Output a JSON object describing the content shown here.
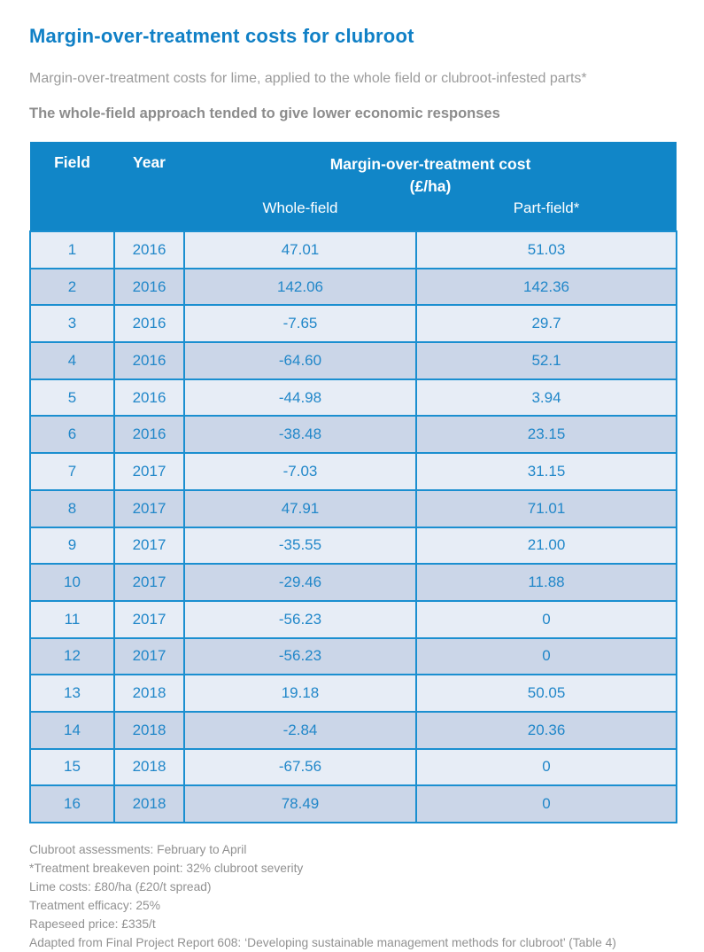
{
  "page": {
    "title": "Margin-over-treatment costs for clubroot",
    "subtitle": "Margin-over-treatment costs for lime, applied to the whole field or clubroot-infested parts*",
    "highlight": "The whole-field approach tended to give lower economic responses"
  },
  "table": {
    "col_field": "Field",
    "col_year": "Year",
    "group_line1": "Margin-over-treatment cost",
    "group_line2": "(£/ha)",
    "col_whole": "Whole-field",
    "col_part": "Part-field*",
    "rows": [
      {
        "field": "1",
        "year": "2016",
        "whole": "47.01",
        "part": "51.03"
      },
      {
        "field": "2",
        "year": "2016",
        "whole": "142.06",
        "part": "142.36"
      },
      {
        "field": "3",
        "year": "2016",
        "whole": "-7.65",
        "part": "29.7"
      },
      {
        "field": "4",
        "year": "2016",
        "whole": "-64.60",
        "part": "52.1"
      },
      {
        "field": "5",
        "year": "2016",
        "whole": "-44.98",
        "part": "3.94"
      },
      {
        "field": "6",
        "year": "2016",
        "whole": "-38.48",
        "part": "23.15"
      },
      {
        "field": "7",
        "year": "2017",
        "whole": "-7.03",
        "part": "31.15"
      },
      {
        "field": "8",
        "year": "2017",
        "whole": "47.91",
        "part": "71.01"
      },
      {
        "field": "9",
        "year": "2017",
        "whole": "-35.55",
        "part": "21.00"
      },
      {
        "field": "10",
        "year": "2017",
        "whole": "-29.46",
        "part": "11.88"
      },
      {
        "field": "11",
        "year": "2017",
        "whole": "-56.23",
        "part": "0"
      },
      {
        "field": "12",
        "year": "2017",
        "whole": "-56.23",
        "part": "0"
      },
      {
        "field": "13",
        "year": "2018",
        "whole": "19.18",
        "part": "50.05"
      },
      {
        "field": "14",
        "year": "2018",
        "whole": "-2.84",
        "part": "20.36"
      },
      {
        "field": "15",
        "year": "2018",
        "whole": "-67.56",
        "part": "0"
      },
      {
        "field": "16",
        "year": "2018",
        "whole": "78.49",
        "part": "0"
      }
    ]
  },
  "footnotes": [
    "Clubroot assessments: February to April",
    "*Treatment breakeven point: 32% clubroot severity",
    "Lime costs: £80/ha (£20/t spread)",
    "Treatment efficacy: 25%",
    "Rapeseed price: £335/t",
    "Adapted from Final Project Report 608: ‘Developing sustainable management methods for clubroot’ (Table 4)"
  ],
  "colors": {
    "title_blue": "#1080c6",
    "header_blue": "#1186c8",
    "border_blue": "#1b8fd0",
    "cell_text_blue": "#2187c9",
    "row_light": "#e7edf6",
    "row_dark": "#cbd6e8",
    "subtitle_gray": "#9b9b9b",
    "highlight_gray": "#8c8c8c",
    "footnote_gray": "#919191"
  },
  "chart_data": {
    "type": "table",
    "title": "Margin-over-treatment cost (£/ha)",
    "columns": [
      "Field",
      "Year",
      "Whole-field",
      "Part-field*"
    ],
    "rows": [
      [
        1,
        2016,
        47.01,
        51.03
      ],
      [
        2,
        2016,
        142.06,
        142.36
      ],
      [
        3,
        2016,
        -7.65,
        29.7
      ],
      [
        4,
        2016,
        -64.6,
        52.1
      ],
      [
        5,
        2016,
        -44.98,
        3.94
      ],
      [
        6,
        2016,
        -38.48,
        23.15
      ],
      [
        7,
        2017,
        -7.03,
        31.15
      ],
      [
        8,
        2017,
        47.91,
        71.01
      ],
      [
        9,
        2017,
        -35.55,
        21.0
      ],
      [
        10,
        2017,
        -29.46,
        11.88
      ],
      [
        11,
        2017,
        -56.23,
        0
      ],
      [
        12,
        2017,
        -56.23,
        0
      ],
      [
        13,
        2018,
        19.18,
        50.05
      ],
      [
        14,
        2018,
        -2.84,
        20.36
      ],
      [
        15,
        2018,
        -67.56,
        0
      ],
      [
        16,
        2018,
        78.49,
        0
      ]
    ]
  }
}
